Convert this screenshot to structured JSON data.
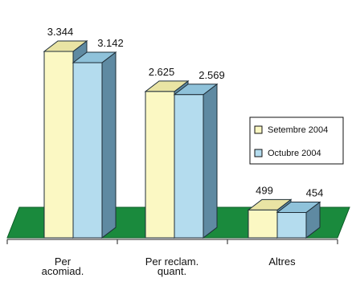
{
  "chart_data": {
    "type": "bar",
    "style": "3d-clustered",
    "categories": [
      [
        "Per",
        "acomiad."
      ],
      [
        "Per reclam.",
        "quant."
      ],
      [
        "Altres"
      ]
    ],
    "series": [
      {
        "name": "Setembre 2004",
        "values": [
          3344,
          2625,
          499
        ],
        "labels": [
          "3.344",
          "2.625",
          "499"
        ],
        "color": "#fbf8c3"
      },
      {
        "name": "Octubre 2004",
        "values": [
          3142,
          2569,
          454
        ],
        "labels": [
          "3.142",
          "2.569",
          "454"
        ],
        "color": "#b4dcee"
      }
    ],
    "ylim": [
      0,
      3344
    ],
    "floor_color": "#1a8a3d",
    "side_color": "#5f8aa2",
    "legend_position": "right"
  }
}
